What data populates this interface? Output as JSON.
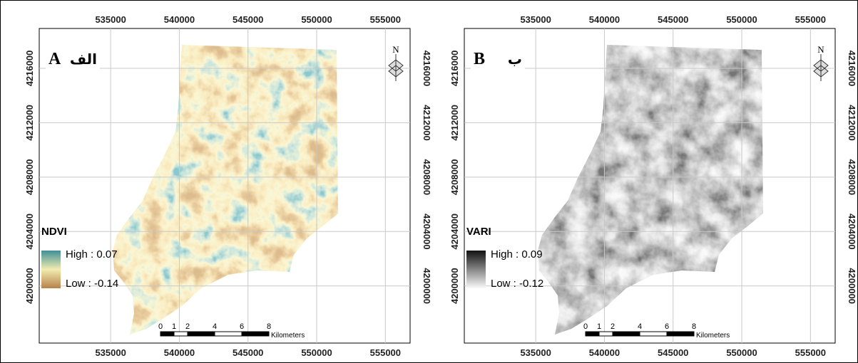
{
  "map": {
    "xlim": [
      529800,
      556800
    ],
    "ylim": [
      4195800,
      4218930
    ],
    "xticks": [
      535000,
      540000,
      545000,
      550000,
      555000
    ],
    "yticks": [
      4200000,
      4204000,
      4208000,
      4212000,
      4216000
    ],
    "north": "N",
    "scale": {
      "ticks": [
        0,
        1,
        2,
        4,
        6,
        8
      ],
      "unit": "Kilometers"
    }
  },
  "panels": [
    {
      "letter": "A",
      "script_label": "الف",
      "legend": {
        "title": "NDVI",
        "high": "High : 0.07",
        "low": "Low : -0.14"
      }
    },
    {
      "letter": "B",
      "script_label": "ب",
      "legend": {
        "title": "VARI",
        "high": "High : 0.09",
        "low": "Low : -0.12"
      }
    }
  ]
}
